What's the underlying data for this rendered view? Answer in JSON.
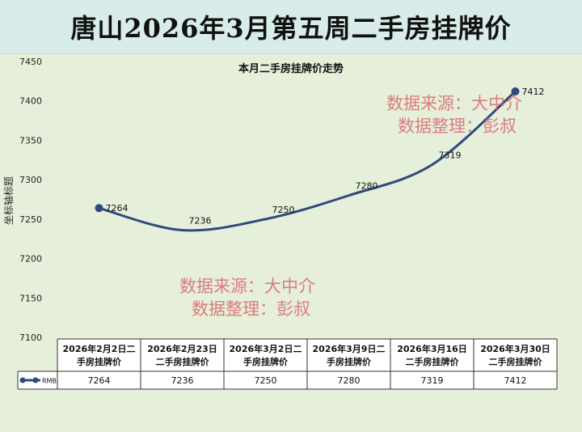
{
  "page_title": "唐山2026年3月第五周二手房挂牌价",
  "watermark": {
    "line1": "数据来源：大中介",
    "line2": "数据整理：彭叔"
  },
  "chart_data": {
    "type": "line",
    "title": "本月二手房挂牌价走势",
    "ylabel": "坐标轴标题",
    "ylim": [
      7100,
      7450
    ],
    "yticks": [
      "7100",
      "7150",
      "7200",
      "7250",
      "7300",
      "7350",
      "7400",
      "7450"
    ],
    "categories": [
      "2026年2月2日二手房挂牌价",
      "2026年2月23日二手房挂牌价",
      "2026年3月2日二手房挂牌价",
      "2026年3月9日二手房挂牌价",
      "2026年3月16日二手房挂牌价",
      "2026年3月30日二手房挂牌价"
    ],
    "category_lines": [
      [
        "2026年2月2日二",
        "手房挂牌价"
      ],
      [
        "2026年2月23日",
        "二手房挂牌价"
      ],
      [
        "2026年3月2日二",
        "手房挂牌价"
      ],
      [
        "2026年3月9日二",
        "手房挂牌价"
      ],
      [
        "2026年3月16日",
        "二手房挂牌价"
      ],
      [
        "2026年3月30日",
        "二手房挂牌价"
      ]
    ],
    "series": [
      {
        "name": "RMB",
        "values": [
          7264,
          7236,
          7250,
          7280,
          7319,
          7412
        ]
      }
    ],
    "data_labels": [
      "7264",
      "7236",
      "7250",
      "7280",
      "7319",
      "7412"
    ],
    "legend": "data-table",
    "grid": false,
    "colors": {
      "line": "#2e4a7c"
    }
  }
}
